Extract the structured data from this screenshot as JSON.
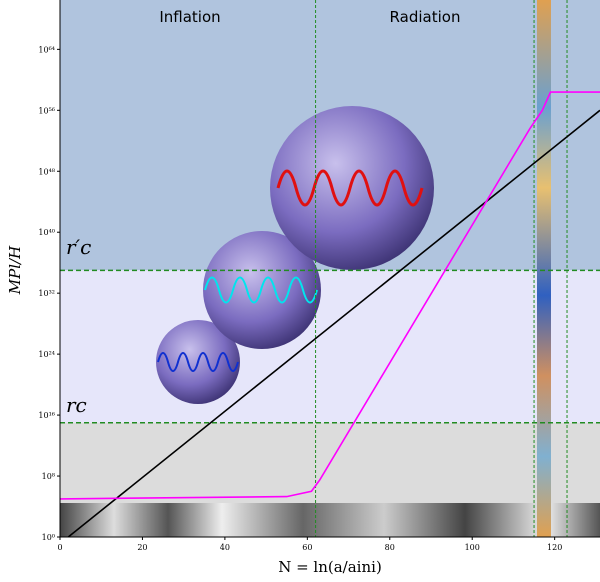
{
  "chart_data": {
    "type": "line",
    "annotations": {
      "inflation": "Inflation",
      "radiation": "Radiation",
      "rc_prime": "r′c",
      "rc": "rc"
    },
    "xlabel": "N = ln(a/aini)",
    "ylabel": "MPl/H",
    "log_y": true,
    "xlim": [
      0,
      131
    ],
    "xticks": [
      0,
      20,
      40,
      60,
      80,
      100,
      120
    ],
    "ylim": [
      1,
      3e+70
    ],
    "yticks": [
      {
        "value": 1,
        "label": "10⁰"
      },
      {
        "value": 100000000.0,
        "label": "10⁸"
      },
      {
        "value": 1e+16,
        "label": "10¹⁶"
      },
      {
        "value": 1e+24,
        "label": "10²⁴"
      },
      {
        "value": 1e+32,
        "label": "10³²"
      },
      {
        "value": 1e+40,
        "label": "10⁴⁰"
      },
      {
        "value": 1e+48,
        "label": "10⁴⁸"
      },
      {
        "value": 1e+56,
        "label": "10⁵⁶"
      },
      {
        "value": 1e+64,
        "label": "10⁶⁴"
      }
    ],
    "bands": [
      {
        "from": 1e+35,
        "to": 3e+70,
        "color": "#b0c4de"
      },
      {
        "from": 1000000000000000.0,
        "to": 1e+35,
        "color": "#e6e6fa"
      },
      {
        "from": 1,
        "to": 1000000000000000.0,
        "color": "#dcdcdc"
      }
    ],
    "hlines": [
      1e+35,
      1000000000000000.0
    ],
    "vlines": [
      62,
      115,
      123
    ],
    "guide_color": "#228b22",
    "series": [
      {
        "color": "#000000",
        "x": [
          2,
          131
        ],
        "values": [
          1,
          1e+56
        ]
      },
      {
        "color": "#ff00ff",
        "x": [
          0,
          55,
          61,
          63,
          114,
          117,
          119,
          131
        ],
        "values": [
          100000.0,
          200000.0,
          1000000.0,
          30000000.0,
          4e+53,
          1e+56,
          2.5e+58,
          2.5e+58
        ]
      }
    ]
  }
}
